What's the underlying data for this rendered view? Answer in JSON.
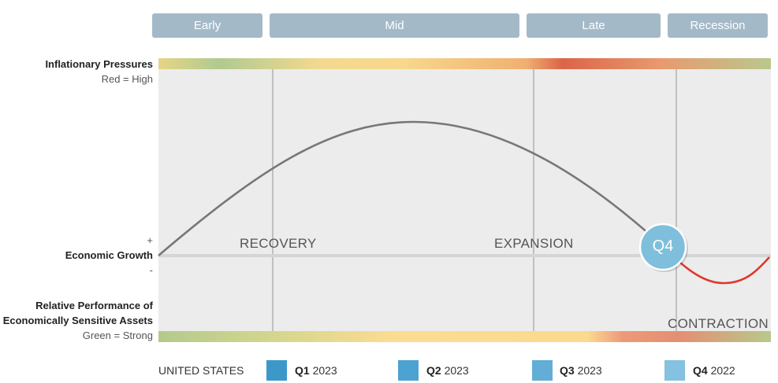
{
  "phases": [
    "Early",
    "Mid",
    "Late",
    "Recession"
  ],
  "left_labels": {
    "inflation_title": "Inflationary Pressures",
    "inflation_scale": "Red = High",
    "plus": "+",
    "growth_title": "Economic Growth",
    "minus": "-",
    "performance_title_1": "Relative Performance of",
    "performance_title_2": "Economically Sensitive Assets",
    "performance_scale": "Green = Strong"
  },
  "stage_labels": {
    "recovery": "RECOVERY",
    "expansion": "EXPANSION",
    "contraction": "CONTRACTION"
  },
  "marker": {
    "label": "Q4",
    "color": "#7fbfdc"
  },
  "colors": {
    "curve": "#777777",
    "recession_curve": "#e0382e",
    "phase_box": "#a4b9c8"
  },
  "legend": {
    "country": "UNITED STATES",
    "items": [
      {
        "quarter": "Q1",
        "year": "2023",
        "color": "#3c98c9"
      },
      {
        "quarter": "Q2",
        "year": "2023",
        "color": "#4ca2d1"
      },
      {
        "quarter": "Q3",
        "year": "2023",
        "color": "#62aed6"
      },
      {
        "quarter": "Q4",
        "year": "2022",
        "color": "#85c1e0"
      }
    ]
  }
}
